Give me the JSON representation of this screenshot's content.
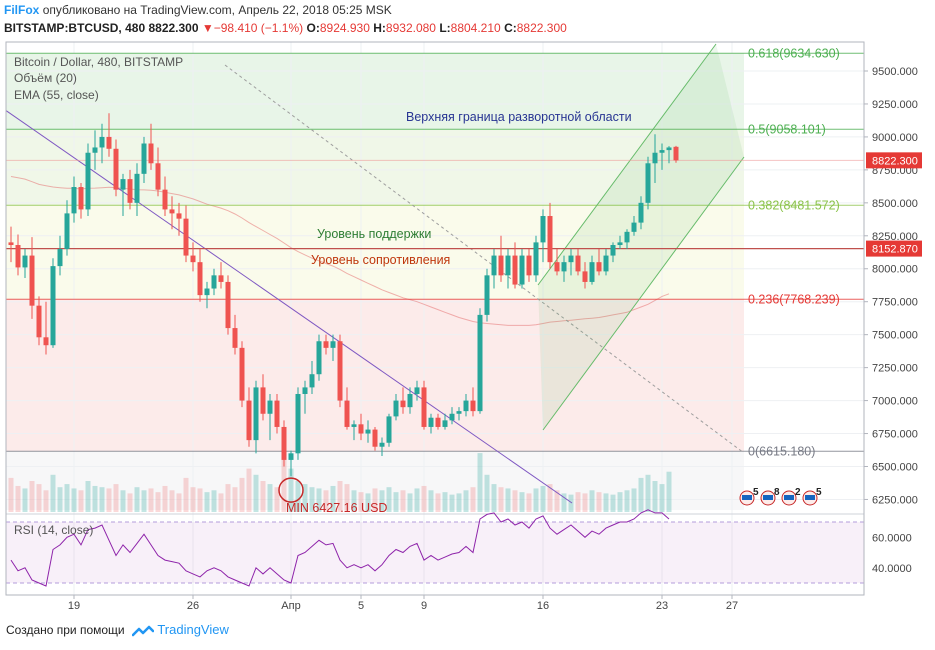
{
  "header": {
    "brand": "FilFox",
    "published": "опубликовано на TradingView.com, Апрель 22, 2018 05:25 MSK",
    "symbol": "BITSTAMP:BTCUSD, 480",
    "last": "8822.300",
    "change": "▼−98.410 (−1.1%)",
    "o_label": "O:",
    "o": "8924.930",
    "h_label": "H:",
    "h": "8932.080",
    "l_label": "L:",
    "l": "8804.210",
    "c_label": "C:",
    "c": "8822.300"
  },
  "legend": {
    "title": "Bitcoin / Dollar, 480, BITSTAMP",
    "volume": "Объём (20)",
    "ema": "EMA (55, close)"
  },
  "annotations": {
    "upper": "Верхняя граница разворотной области",
    "support": "Уровень поддержки",
    "resistance": "Уровень сопротивления",
    "min": "MIN 6427.16 USD"
  },
  "fib_levels": [
    {
      "label": "0.618(9634.630)",
      "value": 9634.63,
      "color": "#4caf50"
    },
    {
      "label": "0.5(9058.101)",
      "value": 9058.101,
      "color": "#4caf50"
    },
    {
      "label": "0.382(8481.572)",
      "value": 8481.572,
      "color": "#8bc34a"
    },
    {
      "label": "0.236(7768.239)",
      "value": 7768.239,
      "color": "#e53935"
    },
    {
      "label": "0(6615.180)",
      "value": 6615.18,
      "color": "#787b86"
    }
  ],
  "price_badges": [
    {
      "label": "8822.300",
      "value": 8822.3,
      "color": "#e53935"
    },
    {
      "label": "8152.870",
      "value": 8152.87,
      "color": "#e53935"
    }
  ],
  "rsi": {
    "title": "RSI (14, close)",
    "ticks": [
      {
        "label": "60.0000",
        "value": 60
      },
      {
        "label": "40.0000",
        "value": 40
      }
    ]
  },
  "event_badges": [
    "5",
    "8",
    "2",
    "5"
  ],
  "chart_data": {
    "type": "candlestick",
    "symbol": "BITSTAMP:BTCUSD",
    "timeframe": "480",
    "y_ticks": [
      9500,
      9250,
      9000,
      8750,
      8500,
      8250,
      8000,
      7750,
      7500,
      7250,
      7000,
      6750,
      6500,
      6250
    ],
    "y_tick_labels": [
      "9500.000",
      "9250.000",
      "9000.000",
      "8750.000",
      "8500.000",
      "8250.000",
      "8000.000",
      "7750.000",
      "7500.000",
      "7250.000",
      "7000.000",
      "6750.000",
      "6500.000",
      "6250.000"
    ],
    "ylim": [
      6170,
      9720
    ],
    "x_ticks": [
      "19",
      "26",
      "Апр",
      "5",
      "9",
      "16",
      "23",
      "27"
    ],
    "x_tick_index": [
      9,
      26,
      40,
      50,
      59,
      76,
      93,
      103
    ],
    "candles": [
      [
        8200,
        8320,
        8050,
        8180
      ],
      [
        8180,
        8260,
        7950,
        8010
      ],
      [
        8010,
        8150,
        7930,
        8100
      ],
      [
        8100,
        8240,
        7620,
        7720
      ],
      [
        7720,
        7790,
        7420,
        7480
      ],
      [
        7480,
        7750,
        7350,
        7420
      ],
      [
        7420,
        8080,
        7400,
        8020
      ],
      [
        8020,
        8250,
        7950,
        8150
      ],
      [
        8150,
        8520,
        8100,
        8420
      ],
      [
        8420,
        8700,
        8350,
        8620
      ],
      [
        8620,
        8650,
        8380,
        8450
      ],
      [
        8450,
        8950,
        8400,
        8880
      ],
      [
        8880,
        9050,
        8750,
        8920
      ],
      [
        8920,
        9100,
        8800,
        9000
      ],
      [
        9000,
        9180,
        8850,
        8910
      ],
      [
        8910,
        8980,
        8550,
        8600
      ],
      [
        8600,
        8720,
        8400,
        8680
      ],
      [
        8680,
        8750,
        8450,
        8500
      ],
      [
        8500,
        8800,
        8400,
        8720
      ],
      [
        8720,
        9000,
        8650,
        8950
      ],
      [
        8950,
        9100,
        8750,
        8800
      ],
      [
        8800,
        8920,
        8550,
        8600
      ],
      [
        8600,
        8700,
        8400,
        8450
      ],
      [
        8450,
        8550,
        8300,
        8420
      ],
      [
        8420,
        8500,
        8250,
        8380
      ],
      [
        8380,
        8480,
        8050,
        8100
      ],
      [
        8100,
        8200,
        7980,
        8050
      ],
      [
        8050,
        8150,
        7750,
        7800
      ],
      [
        7800,
        7900,
        7700,
        7850
      ],
      [
        7850,
        8000,
        7800,
        7950
      ],
      [
        7950,
        8050,
        7850,
        7900
      ],
      [
        7900,
        7950,
        7500,
        7550
      ],
      [
        7550,
        7650,
        7350,
        7400
      ],
      [
        7400,
        7450,
        6950,
        7000
      ],
      [
        7000,
        7100,
        6650,
        6700
      ],
      [
        6700,
        7150,
        6600,
        7100
      ],
      [
        7100,
        7200,
        6850,
        6900
      ],
      [
        6900,
        7050,
        6700,
        7000
      ],
      [
        7000,
        7050,
        6750,
        6800
      ],
      [
        6800,
        6850,
        6500,
        6550
      ],
      [
        6550,
        6620,
        6427,
        6600
      ],
      [
        6600,
        7100,
        6550,
        7050
      ],
      [
        7050,
        7150,
        6900,
        7100
      ],
      [
        7100,
        7300,
        7050,
        7200
      ],
      [
        7200,
        7500,
        7150,
        7450
      ],
      [
        7450,
        7500,
        7350,
        7400
      ],
      [
        7400,
        7500,
        7300,
        7450
      ],
      [
        7450,
        7500,
        6950,
        7000
      ],
      [
        7000,
        7100,
        6780,
        6800
      ],
      [
        6800,
        6850,
        6700,
        6820
      ],
      [
        6820,
        6900,
        6700,
        6750
      ],
      [
        6750,
        6850,
        6680,
        6780
      ],
      [
        6780,
        6800,
        6620,
        6650
      ],
      [
        6650,
        6720,
        6580,
        6680
      ],
      [
        6680,
        6900,
        6650,
        6880
      ],
      [
        6880,
        7050,
        6850,
        7000
      ],
      [
        7000,
        7100,
        6900,
        6950
      ],
      [
        6950,
        7100,
        6900,
        7050
      ],
      [
        7050,
        7150,
        7000,
        7100
      ],
      [
        7100,
        7150,
        6780,
        6800
      ],
      [
        6800,
        6900,
        6750,
        6870
      ],
      [
        6870,
        6900,
        6780,
        6800
      ],
      [
        6800,
        6900,
        6780,
        6850
      ],
      [
        6850,
        6950,
        6820,
        6900
      ],
      [
        6900,
        6950,
        6850,
        6920
      ],
      [
        6920,
        7050,
        6880,
        7000
      ],
      [
        7000,
        7100,
        6880,
        6920
      ],
      [
        6920,
        7700,
        6900,
        7650
      ],
      [
        7650,
        8000,
        7600,
        7950
      ],
      [
        7950,
        8150,
        7850,
        8100
      ],
      [
        8100,
        8250,
        7900,
        7950
      ],
      [
        7950,
        8150,
        7850,
        8100
      ],
      [
        8100,
        8200,
        7850,
        7880
      ],
      [
        7880,
        8150,
        7850,
        8100
      ],
      [
        8100,
        8150,
        7900,
        7950
      ],
      [
        7950,
        8250,
        7900,
        8200
      ],
      [
        8200,
        8450,
        8050,
        8400
      ],
      [
        8400,
        8500,
        8000,
        8050
      ],
      [
        8050,
        8150,
        7950,
        7980
      ],
      [
        7980,
        8100,
        7900,
        8050
      ],
      [
        8050,
        8150,
        7950,
        8100
      ],
      [
        8100,
        8150,
        7950,
        7980
      ],
      [
        7980,
        8050,
        7850,
        7900
      ],
      [
        7900,
        8100,
        7880,
        8050
      ],
      [
        8050,
        8150,
        7950,
        7980
      ],
      [
        7980,
        8150,
        7950,
        8100
      ],
      [
        8100,
        8200,
        8050,
        8180
      ],
      [
        8180,
        8250,
        8150,
        8200
      ],
      [
        8200,
        8300,
        8150,
        8280
      ],
      [
        8280,
        8400,
        8250,
        8350
      ],
      [
        8350,
        8550,
        8300,
        8500
      ],
      [
        8500,
        8850,
        8450,
        8800
      ],
      [
        8800,
        9020,
        8650,
        8880
      ],
      [
        8880,
        8950,
        8750,
        8900
      ],
      [
        8900,
        8930,
        8800,
        8920
      ],
      [
        8924.93,
        8932.08,
        8804.21,
        8822.3
      ]
    ],
    "volume": [
      0.55,
      0.42,
      0.38,
      0.5,
      0.45,
      0.35,
      0.6,
      0.4,
      0.45,
      0.38,
      0.35,
      0.5,
      0.42,
      0.4,
      0.38,
      0.45,
      0.35,
      0.3,
      0.4,
      0.35,
      0.38,
      0.32,
      0.42,
      0.35,
      0.3,
      0.55,
      0.4,
      0.38,
      0.32,
      0.35,
      0.3,
      0.45,
      0.4,
      0.55,
      0.7,
      0.6,
      0.5,
      0.45,
      0.4,
      0.85,
      0.7,
      0.5,
      0.45,
      0.4,
      0.38,
      0.35,
      0.42,
      0.5,
      0.45,
      0.35,
      0.32,
      0.3,
      0.38,
      0.35,
      0.4,
      0.32,
      0.35,
      0.3,
      0.38,
      0.42,
      0.35,
      0.3,
      0.32,
      0.28,
      0.3,
      0.35,
      0.4,
      0.95,
      0.6,
      0.45,
      0.4,
      0.38,
      0.35,
      0.32,
      0.3,
      0.38,
      0.42,
      0.45,
      0.35,
      0.3,
      0.28,
      0.32,
      0.3,
      0.35,
      0.32,
      0.3,
      0.28,
      0.32,
      0.35,
      0.38,
      0.55,
      0.6,
      0.5,
      0.45,
      0.65
    ],
    "ema55": [
      8700,
      8690,
      8680,
      8660,
      8640,
      8630,
      8620,
      8615,
      8610,
      8610,
      8605,
      8610,
      8612,
      8615,
      8618,
      8615,
      8610,
      8605,
      8600,
      8598,
      8595,
      8590,
      8580,
      8570,
      8560,
      8545,
      8530,
      8510,
      8490,
      8475,
      8460,
      8440,
      8415,
      8385,
      8350,
      8320,
      8290,
      8260,
      8230,
      8195,
      8160,
      8130,
      8105,
      8080,
      8060,
      8040,
      8020,
      7995,
      7965,
      7940,
      7915,
      7890,
      7865,
      7840,
      7820,
      7800,
      7780,
      7765,
      7750,
      7730,
      7710,
      7690,
      7670,
      7650,
      7630,
      7615,
      7600,
      7590,
      7585,
      7580,
      7575,
      7570,
      7570,
      7570,
      7570,
      7575,
      7585,
      7595,
      7600,
      7605,
      7610,
      7615,
      7620,
      7625,
      7630,
      7640,
      7650,
      7660,
      7670,
      7690,
      7710,
      7730,
      7760,
      7790,
      7810
    ],
    "rsi": [
      45,
      38,
      40,
      32,
      30,
      28,
      52,
      55,
      60,
      62,
      55,
      65,
      66,
      68,
      58,
      48,
      55,
      50,
      56,
      62,
      55,
      48,
      45,
      44,
      43,
      38,
      36,
      34,
      38,
      40,
      38,
      34,
      32,
      30,
      28,
      40,
      36,
      40,
      36,
      32,
      30,
      48,
      50,
      54,
      58,
      55,
      56,
      45,
      40,
      42,
      40,
      42,
      38,
      42,
      48,
      52,
      50,
      54,
      56,
      45,
      48,
      45,
      47,
      49,
      50,
      54,
      50,
      72,
      75,
      76,
      70,
      72,
      68,
      70,
      66,
      72,
      74,
      66,
      62,
      65,
      68,
      64,
      60,
      64,
      62,
      66,
      68,
      70,
      70,
      72,
      76,
      78,
      76,
      76,
      72
    ],
    "support_level": 8152.87,
    "annotated_min": 6427.16
  }
}
